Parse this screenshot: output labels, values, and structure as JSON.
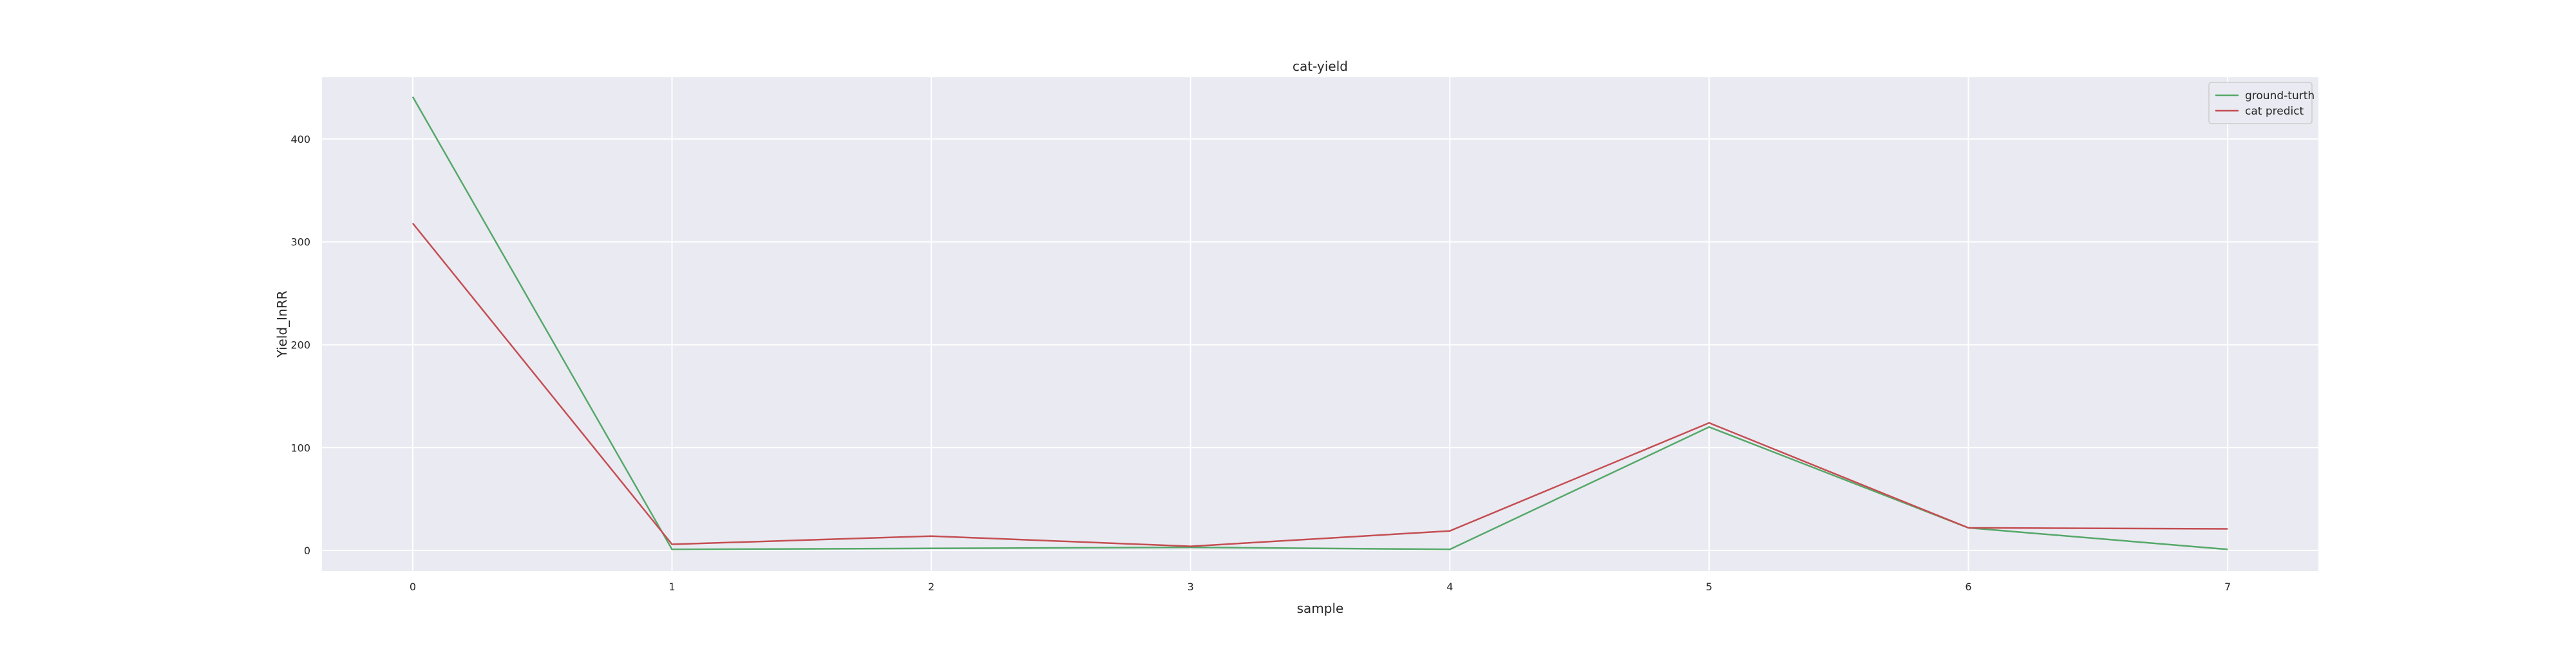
{
  "chart_data": {
    "type": "line",
    "title": "cat-yield",
    "xlabel": "sample",
    "ylabel": "Yield_InRR",
    "x": [
      0,
      1,
      2,
      3,
      4,
      5,
      6,
      7
    ],
    "xlim": [
      -0.35,
      7.35
    ],
    "ylim": [
      -20,
      460
    ],
    "xticks": [
      0,
      1,
      2,
      3,
      4,
      5,
      6,
      7
    ],
    "yticks": [
      0,
      100,
      200,
      300,
      400
    ],
    "grid": true,
    "legend_position": "top-right",
    "series": [
      {
        "name": "ground-turth",
        "color": "#55a868",
        "values": [
          441,
          1,
          2,
          3,
          1,
          120,
          22,
          1
        ]
      },
      {
        "name": "cat predict",
        "color": "#c44e52",
        "values": [
          318,
          6,
          14,
          4,
          19,
          124,
          22,
          21
        ]
      }
    ],
    "colors": {
      "plot_background": "#eaeaf2",
      "grid": "#ffffff"
    }
  }
}
